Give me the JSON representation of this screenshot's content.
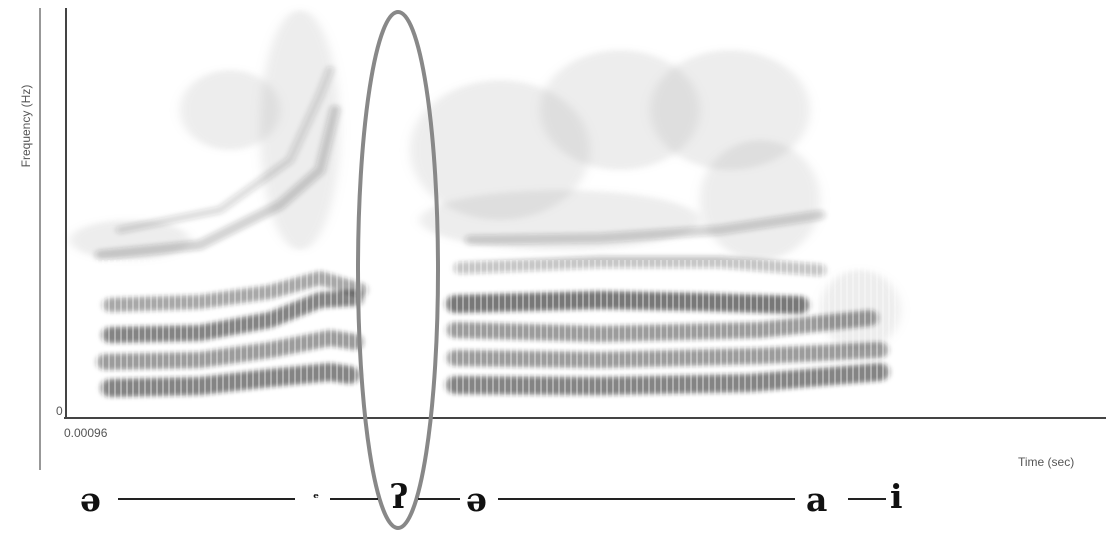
{
  "chart_data": {
    "type": "heatmap",
    "title": "",
    "ylabel": "Frequency (Hz)",
    "xlabel": "Time (sec)",
    "y_tick_labels": [
      "0"
    ],
    "x_tick_labels": [
      "0.00096"
    ],
    "grid": false,
    "legend": "none",
    "annotation": "ellipse marking glottal stop gap",
    "segments": [
      {
        "symbol": "ə"
      },
      {
        "symbol": "ʔ"
      },
      {
        "symbol": "ə"
      },
      {
        "symbol": "a"
      },
      {
        "symbol": "i"
      }
    ],
    "marks": {
      "small_mark": "ᵉ"
    }
  },
  "colors": {
    "axis": "#444444",
    "spectrogram": "#222222",
    "ellipse": "#888888"
  }
}
